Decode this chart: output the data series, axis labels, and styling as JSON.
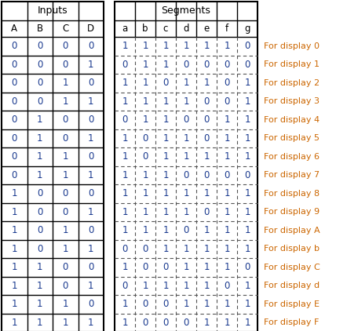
{
  "inputs_header": "Inputs",
  "segments_header": "Segments",
  "input_col_headers": [
    "A",
    "B",
    "C",
    "D"
  ],
  "seg_col_headers": [
    "a",
    "b",
    "c",
    "d",
    "e",
    "f",
    "g"
  ],
  "rows": [
    [
      0,
      0,
      0,
      0,
      1,
      1,
      1,
      1,
      1,
      1,
      0,
      "For display 0"
    ],
    [
      0,
      0,
      0,
      1,
      0,
      1,
      1,
      0,
      0,
      0,
      0,
      "For display 1"
    ],
    [
      0,
      0,
      1,
      0,
      1,
      1,
      0,
      1,
      1,
      0,
      1,
      "For display 2"
    ],
    [
      0,
      0,
      1,
      1,
      1,
      1,
      1,
      1,
      0,
      0,
      1,
      "For display 3"
    ],
    [
      0,
      1,
      0,
      0,
      0,
      1,
      1,
      0,
      0,
      1,
      1,
      "For display 4"
    ],
    [
      0,
      1,
      0,
      1,
      1,
      0,
      1,
      1,
      0,
      1,
      1,
      "For display 5"
    ],
    [
      0,
      1,
      1,
      0,
      1,
      0,
      1,
      1,
      1,
      1,
      1,
      "For display 6"
    ],
    [
      0,
      1,
      1,
      1,
      1,
      1,
      1,
      0,
      0,
      0,
      0,
      "For display 7"
    ],
    [
      1,
      0,
      0,
      0,
      1,
      1,
      1,
      1,
      1,
      1,
      1,
      "For display 8"
    ],
    [
      1,
      0,
      0,
      1,
      1,
      1,
      1,
      1,
      0,
      1,
      1,
      "For display 9"
    ],
    [
      1,
      0,
      1,
      0,
      1,
      1,
      1,
      0,
      1,
      1,
      1,
      "For display A"
    ],
    [
      1,
      0,
      1,
      1,
      0,
      0,
      1,
      1,
      1,
      1,
      1,
      "For display b"
    ],
    [
      1,
      1,
      0,
      0,
      1,
      0,
      0,
      1,
      1,
      1,
      0,
      "For display C"
    ],
    [
      1,
      1,
      0,
      1,
      0,
      1,
      1,
      1,
      1,
      0,
      1,
      "For display d"
    ],
    [
      1,
      1,
      1,
      0,
      1,
      0,
      0,
      1,
      1,
      1,
      1,
      "For display E"
    ],
    [
      1,
      1,
      1,
      1,
      1,
      0,
      0,
      0,
      1,
      1,
      1,
      "For display F"
    ]
  ],
  "header_text_color": "#000000",
  "data_text_color": "#1a3a8f",
  "annotation_color": "#cc6600",
  "bg_color": "#ffffff",
  "figsize": [
    4.42,
    4.22
  ],
  "dpi": 100,
  "solid_line_color": "#000000",
  "dotted_line_color": "#555555"
}
